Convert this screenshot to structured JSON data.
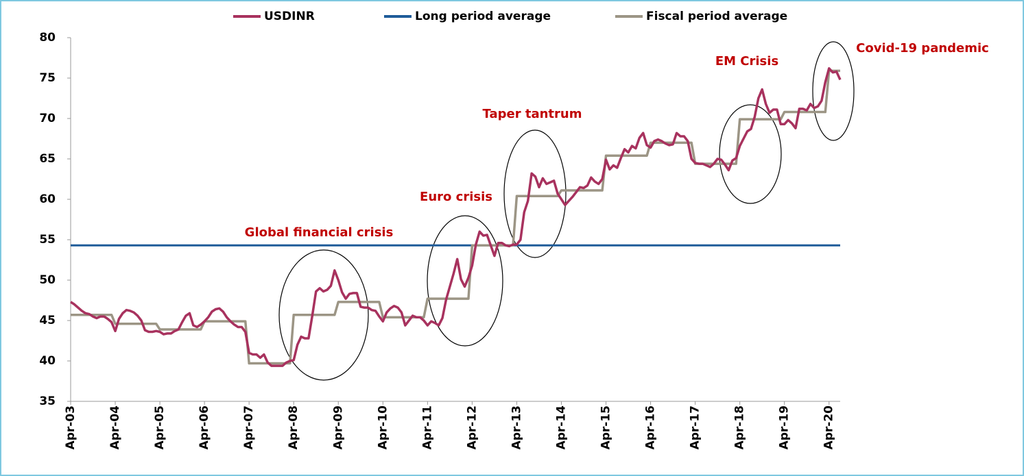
{
  "chart_data": {
    "type": "line",
    "categories": [
      "Apr-03",
      null,
      null,
      null,
      null,
      null,
      null,
      null,
      null,
      null,
      null,
      null,
      "Apr-04",
      null,
      null,
      null,
      null,
      null,
      null,
      null,
      null,
      null,
      null,
      null,
      "Apr-05",
      null,
      null,
      null,
      null,
      null,
      null,
      null,
      null,
      null,
      null,
      null,
      "Apr-06",
      null,
      null,
      null,
      null,
      null,
      null,
      null,
      null,
      null,
      null,
      null,
      "Apr-07",
      null,
      null,
      null,
      null,
      null,
      null,
      null,
      null,
      null,
      null,
      null,
      "Apr-08",
      null,
      null,
      null,
      null,
      null,
      null,
      null,
      null,
      null,
      null,
      null,
      "Apr-09",
      null,
      null,
      null,
      null,
      null,
      null,
      null,
      null,
      null,
      null,
      null,
      "Apr-10",
      null,
      null,
      null,
      null,
      null,
      null,
      null,
      null,
      null,
      null,
      null,
      "Apr-11",
      null,
      null,
      null,
      null,
      null,
      null,
      null,
      null,
      null,
      null,
      null,
      "Apr-12",
      null,
      null,
      null,
      null,
      null,
      null,
      null,
      null,
      null,
      null,
      null,
      "Apr-13",
      null,
      null,
      null,
      null,
      null,
      null,
      null,
      null,
      null,
      null,
      null,
      "Apr-14",
      null,
      null,
      null,
      null,
      null,
      null,
      null,
      null,
      null,
      null,
      null,
      "Apr-15",
      null,
      null,
      null,
      null,
      null,
      null,
      null,
      null,
      null,
      null,
      null,
      "Apr-16",
      null,
      null,
      null,
      null,
      null,
      null,
      null,
      null,
      null,
      null,
      null,
      "Apr-17",
      null,
      null,
      null,
      null,
      null,
      null,
      null,
      null,
      null,
      null,
      null,
      "Apr-18",
      null,
      null,
      null,
      null,
      null,
      null,
      null,
      null,
      null,
      null,
      null,
      "Apr-19",
      null,
      null,
      null,
      null,
      null,
      null,
      null,
      null,
      null,
      null,
      null,
      "Apr-20",
      null,
      null,
      null
    ],
    "series": [
      {
        "name": "USDINR",
        "color": "#a8325e",
        "values": [
          47.3,
          47.0,
          46.6,
          46.2,
          45.9,
          45.8,
          45.5,
          45.3,
          45.5,
          45.5,
          45.2,
          44.8,
          43.7,
          45.2,
          45.9,
          46.3,
          46.2,
          46.0,
          45.6,
          45.0,
          43.8,
          43.6,
          43.6,
          43.7,
          43.6,
          43.3,
          43.4,
          43.4,
          43.7,
          43.9,
          44.8,
          45.6,
          45.9,
          44.4,
          44.2,
          44.5,
          44.9,
          45.4,
          46.1,
          46.4,
          46.5,
          46.1,
          45.4,
          44.9,
          44.5,
          44.2,
          44.2,
          43.6,
          41.0,
          40.8,
          40.8,
          40.4,
          40.8,
          39.8,
          39.4,
          39.4,
          39.4,
          39.4,
          39.8,
          40.0,
          40.1,
          42.0,
          43.0,
          42.8,
          42.8,
          45.6,
          48.6,
          49.0,
          48.6,
          48.8,
          49.3,
          51.2,
          50.0,
          48.5,
          47.7,
          48.3,
          48.4,
          48.4,
          46.7,
          46.6,
          46.6,
          46.3,
          46.2,
          45.5,
          44.9,
          46.0,
          46.5,
          46.8,
          46.6,
          46.0,
          44.4,
          45.0,
          45.6,
          45.4,
          45.4,
          45.0,
          44.4,
          44.9,
          44.7,
          44.4,
          45.3,
          47.6,
          49.2,
          50.8,
          52.6,
          50.1,
          49.2,
          50.3,
          51.8,
          54.4,
          56.0,
          55.5,
          55.6,
          54.3,
          53.0,
          54.6,
          54.6,
          54.3,
          54.2,
          54.4,
          54.4,
          55.0,
          58.4,
          59.8,
          63.2,
          62.8,
          61.5,
          62.6,
          61.9,
          62.1,
          62.3,
          60.7,
          60.0,
          59.3,
          59.8,
          60.3,
          60.9,
          61.5,
          61.4,
          61.7,
          62.7,
          62.2,
          61.9,
          62.5,
          64.9,
          63.7,
          64.2,
          63.9,
          65.1,
          66.2,
          65.8,
          66.6,
          66.3,
          67.6,
          68.2,
          66.7,
          66.4,
          67.2,
          67.4,
          67.2,
          66.9,
          66.7,
          66.8,
          68.2,
          67.8,
          67.8,
          67.2,
          65.0,
          64.5,
          64.4,
          64.4,
          64.2,
          64.0,
          64.4,
          65.0,
          64.9,
          64.3,
          63.6,
          64.8,
          65.1,
          66.6,
          67.5,
          68.4,
          68.7,
          70.2,
          72.5,
          73.6,
          71.8,
          70.7,
          71.1,
          71.1,
          69.3,
          69.3,
          69.8,
          69.4,
          68.8,
          71.2,
          71.2,
          71.0,
          71.8,
          71.3,
          71.5,
          72.2,
          74.5,
          76.2,
          75.7,
          75.8,
          74.8
        ]
      },
      {
        "name": "Fiscal period average",
        "color": "#9c9585",
        "values": [
          45.7,
          45.7,
          45.7,
          45.7,
          45.7,
          45.7,
          45.7,
          45.7,
          45.7,
          45.7,
          45.7,
          45.7,
          44.6,
          44.6,
          44.6,
          44.6,
          44.6,
          44.6,
          44.6,
          44.6,
          44.6,
          44.6,
          44.6,
          44.6,
          43.9,
          43.9,
          43.9,
          43.9,
          43.9,
          43.9,
          43.9,
          43.9,
          43.9,
          43.9,
          43.9,
          43.9,
          44.9,
          44.9,
          44.9,
          44.9,
          44.9,
          44.9,
          44.9,
          44.9,
          44.9,
          44.9,
          44.9,
          44.9,
          39.7,
          39.7,
          39.7,
          39.7,
          39.7,
          39.7,
          39.7,
          39.7,
          39.7,
          39.7,
          39.7,
          39.7,
          45.7,
          45.7,
          45.7,
          45.7,
          45.7,
          45.7,
          45.7,
          45.7,
          45.7,
          45.7,
          45.7,
          45.7,
          47.3,
          47.3,
          47.3,
          47.3,
          47.3,
          47.3,
          47.3,
          47.3,
          47.3,
          47.3,
          47.3,
          47.3,
          45.4,
          45.4,
          45.4,
          45.4,
          45.4,
          45.4,
          45.4,
          45.4,
          45.4,
          45.4,
          45.4,
          45.4,
          47.7,
          47.7,
          47.7,
          47.7,
          47.7,
          47.7,
          47.7,
          47.7,
          47.7,
          47.7,
          47.7,
          47.7,
          54.3,
          54.3,
          54.3,
          54.3,
          54.3,
          54.3,
          54.3,
          54.3,
          54.3,
          54.3,
          54.3,
          54.3,
          60.4,
          60.4,
          60.4,
          60.4,
          60.4,
          60.4,
          60.4,
          60.4,
          60.4,
          60.4,
          60.4,
          60.4,
          61.1,
          61.1,
          61.1,
          61.1,
          61.1,
          61.1,
          61.1,
          61.1,
          61.1,
          61.1,
          61.1,
          61.1,
          65.4,
          65.4,
          65.4,
          65.4,
          65.4,
          65.4,
          65.4,
          65.4,
          65.4,
          65.4,
          65.4,
          65.4,
          67.0,
          67.0,
          67.0,
          67.0,
          67.0,
          67.0,
          67.0,
          67.0,
          67.0,
          67.0,
          67.0,
          67.0,
          64.4,
          64.4,
          64.4,
          64.4,
          64.4,
          64.4,
          64.4,
          64.4,
          64.4,
          64.4,
          64.4,
          64.4,
          69.9,
          69.9,
          69.9,
          69.9,
          69.9,
          69.9,
          69.9,
          69.9,
          69.9,
          69.9,
          69.9,
          69.9,
          70.8,
          70.8,
          70.8,
          70.8,
          70.8,
          70.8,
          70.8,
          70.8,
          70.8,
          70.8,
          70.8,
          70.8,
          75.9,
          75.9,
          75.9,
          75.9
        ]
      }
    ],
    "reference_line": {
      "name": "Long period average",
      "color": "#1f5c99",
      "value": 54.3
    },
    "annotations": [
      "Global financial crisis",
      "Euro crisis",
      "Taper tantrum",
      "EM Crisis",
      "Covid-19 pandemic"
    ],
    "ylim": [
      35,
      80
    ],
    "yticks": [
      35,
      40,
      45,
      50,
      55,
      60,
      65,
      70,
      75,
      80
    ],
    "grid": false
  }
}
